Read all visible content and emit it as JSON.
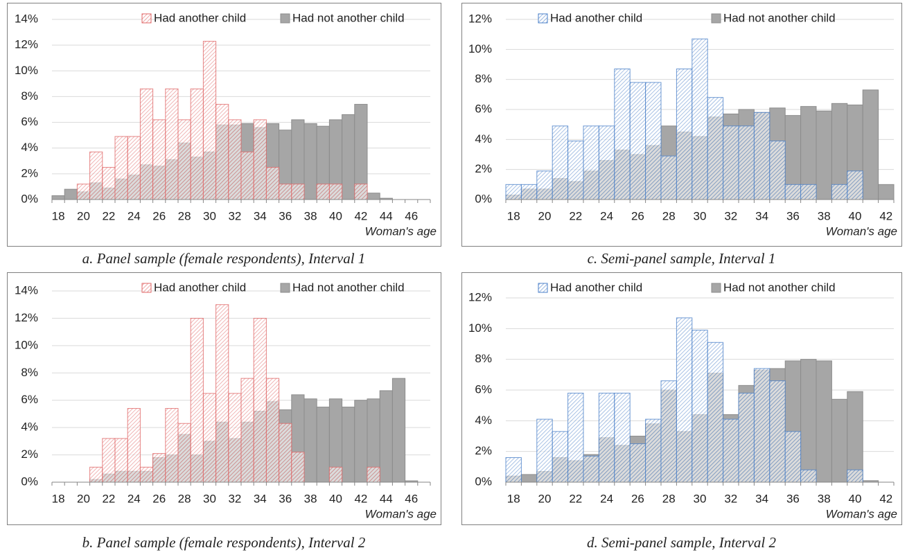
{
  "chart_data": [
    {
      "type": "bar",
      "caption": "a. Panel sample (female respondents), Interval 1",
      "x_label": "Woman's age",
      "categories": [
        "18",
        null,
        "20",
        null,
        "22",
        null,
        "24",
        null,
        "26",
        null,
        "28",
        null,
        "30",
        null,
        "32",
        null,
        "34",
        null,
        "36",
        null,
        "38",
        null,
        "40",
        null,
        "42",
        null,
        "44",
        null,
        "46",
        null
      ],
      "series": [
        {
          "name": "Had not another child",
          "color": "#a6a6a6",
          "pattern": "solid",
          "values": [
            0.3,
            0.8,
            0.6,
            1.3,
            0.9,
            1.6,
            1.9,
            2.7,
            2.6,
            3.1,
            4.4,
            3.3,
            3.7,
            5.8,
            5.8,
            5.9,
            5.6,
            5.9,
            5.4,
            6.2,
            5.9,
            5.7,
            6.2,
            6.6,
            7.4,
            0.5,
            0.1,
            0,
            0,
            0
          ]
        },
        {
          "name": "Had another child",
          "color": "#e06666",
          "pattern": "hatch",
          "values": [
            0,
            0,
            1.2,
            3.7,
            2.5,
            4.9,
            4.9,
            8.6,
            6.2,
            8.6,
            6.2,
            8.6,
            12.3,
            7.4,
            6.2,
            3.7,
            6.2,
            2.5,
            1.2,
            1.2,
            0,
            1.2,
            1.2,
            0,
            1.2,
            0,
            0,
            0,
            0,
            0
          ]
        }
      ],
      "ylim": [
        0,
        14
      ],
      "yticks": [
        {
          "value": 0,
          "label": "0%"
        },
        {
          "value": 2,
          "label": "2%"
        },
        {
          "value": 4,
          "label": "4%"
        },
        {
          "value": 6,
          "label": "6%"
        },
        {
          "value": 8,
          "label": "8%"
        },
        {
          "value": 10,
          "label": "10%"
        },
        {
          "value": 12,
          "label": "12%"
        },
        {
          "value": 14,
          "label": "14%"
        }
      ],
      "grid": true
    },
    {
      "type": "bar",
      "caption": "c. Semi-panel sample, Interval 1",
      "x_label": "Woman's age",
      "categories": [
        "18",
        null,
        "20",
        null,
        "22",
        null,
        "24",
        null,
        "26",
        null,
        "28",
        null,
        "30",
        null,
        "32",
        null,
        "34",
        null,
        "36",
        null,
        "38",
        null,
        "40",
        null,
        "42"
      ],
      "series": [
        {
          "name": "Had not another child",
          "color": "#a6a6a6",
          "pattern": "solid",
          "values": [
            0.3,
            0.7,
            0.7,
            1.4,
            1.2,
            1.9,
            2.6,
            3.3,
            3.0,
            3.6,
            4.9,
            4.5,
            4.2,
            5.5,
            5.7,
            6.0,
            5.8,
            6.1,
            5.6,
            6.2,
            5.9,
            6.4,
            6.3,
            7.3,
            1.0
          ]
        },
        {
          "name": "Had another child",
          "color": "#4a7fc8",
          "pattern": "hatch",
          "values": [
            1.0,
            1.0,
            1.9,
            4.9,
            3.9,
            4.9,
            4.9,
            8.7,
            7.8,
            7.8,
            2.9,
            8.7,
            10.7,
            6.8,
            4.9,
            4.9,
            5.8,
            3.9,
            1.0,
            1.0,
            0,
            1.0,
            1.9,
            0,
            0
          ]
        }
      ],
      "ylim": [
        0,
        12
      ],
      "yticks": [
        {
          "value": 0,
          "label": "0%"
        },
        {
          "value": 2,
          "label": "2%"
        },
        {
          "value": 4,
          "label": "4%"
        },
        {
          "value": 6,
          "label": "6%"
        },
        {
          "value": 8,
          "label": "8%"
        },
        {
          "value": 10,
          "label": "10%"
        },
        {
          "value": 12,
          "label": "12%"
        }
      ],
      "grid": true
    },
    {
      "type": "bar",
      "caption": "b. Panel sample (female respondents), Interval 2",
      "x_label": "Woman's age",
      "categories": [
        "18",
        null,
        "20",
        null,
        "22",
        null,
        "24",
        null,
        "26",
        null,
        "28",
        null,
        "30",
        null,
        "32",
        null,
        "34",
        null,
        "36",
        null,
        "38",
        null,
        "40",
        null,
        "42",
        null,
        "44",
        null,
        "46",
        null
      ],
      "series": [
        {
          "name": "Had not another child",
          "color": "#a6a6a6",
          "pattern": "solid",
          "values": [
            0,
            0,
            0,
            0.2,
            0.6,
            0.8,
            0.8,
            0.8,
            1.8,
            2.0,
            3.5,
            2.0,
            3.0,
            4.4,
            3.2,
            4.4,
            5.2,
            5.9,
            5.3,
            6.4,
            6.1,
            5.5,
            6.1,
            5.5,
            6.0,
            6.1,
            6.7,
            7.6,
            0.1,
            0
          ]
        },
        {
          "name": "Had another child",
          "color": "#e06666",
          "pattern": "hatch",
          "values": [
            0,
            0,
            0,
            1.1,
            3.2,
            3.2,
            5.4,
            1.1,
            2.1,
            5.4,
            4.3,
            12.0,
            6.5,
            13.0,
            6.5,
            7.6,
            12.0,
            7.6,
            4.3,
            2.2,
            0,
            0,
            1.1,
            0,
            0,
            1.1,
            0,
            0,
            0,
            0
          ]
        }
      ],
      "ylim": [
        0,
        14
      ],
      "yticks": [
        {
          "value": 0,
          "label": "0%"
        },
        {
          "value": 2,
          "label": "2%"
        },
        {
          "value": 4,
          "label": "4%"
        },
        {
          "value": 6,
          "label": "6%"
        },
        {
          "value": 8,
          "label": "8%"
        },
        {
          "value": 10,
          "label": "10%"
        },
        {
          "value": 12,
          "label": "12%"
        },
        {
          "value": 14,
          "label": "14%"
        }
      ],
      "grid": true
    },
    {
      "type": "bar",
      "caption": "d. Semi-panel sample, Interval 2",
      "x_label": "Woman's age",
      "categories": [
        "18",
        null,
        "20",
        null,
        "22",
        null,
        "24",
        null,
        "26",
        null,
        "28",
        null,
        "30",
        null,
        "32",
        null,
        "34",
        null,
        "36",
        null,
        "38",
        null,
        "40",
        null,
        "42"
      ],
      "series": [
        {
          "name": "Had not another child",
          "color": "#a6a6a6",
          "pattern": "solid",
          "values": [
            0.4,
            0.5,
            0.7,
            1.6,
            1.4,
            1.8,
            2.9,
            2.4,
            3.0,
            3.8,
            6.0,
            3.3,
            4.4,
            7.1,
            4.4,
            6.3,
            7.3,
            7.4,
            7.9,
            8.0,
            7.9,
            5.4,
            5.9,
            0.1,
            0
          ]
        },
        {
          "name": "Had another child",
          "color": "#4a7fc8",
          "pattern": "hatch",
          "values": [
            1.6,
            0,
            4.1,
            3.3,
            5.8,
            1.7,
            5.8,
            5.8,
            2.5,
            4.1,
            6.6,
            10.7,
            9.9,
            9.1,
            4.1,
            5.8,
            7.4,
            6.6,
            3.3,
            0.8,
            0,
            0,
            0.8,
            0,
            0
          ]
        }
      ],
      "ylim": [
        0,
        12
      ],
      "yticks": [
        {
          "value": 0,
          "label": "0%"
        },
        {
          "value": 2,
          "label": "2%"
        },
        {
          "value": 4,
          "label": "4%"
        },
        {
          "value": 6,
          "label": "6%"
        },
        {
          "value": 8,
          "label": "8%"
        },
        {
          "value": 10,
          "label": "10%"
        },
        {
          "value": 12,
          "label": "12%"
        }
      ],
      "grid": true
    }
  ]
}
